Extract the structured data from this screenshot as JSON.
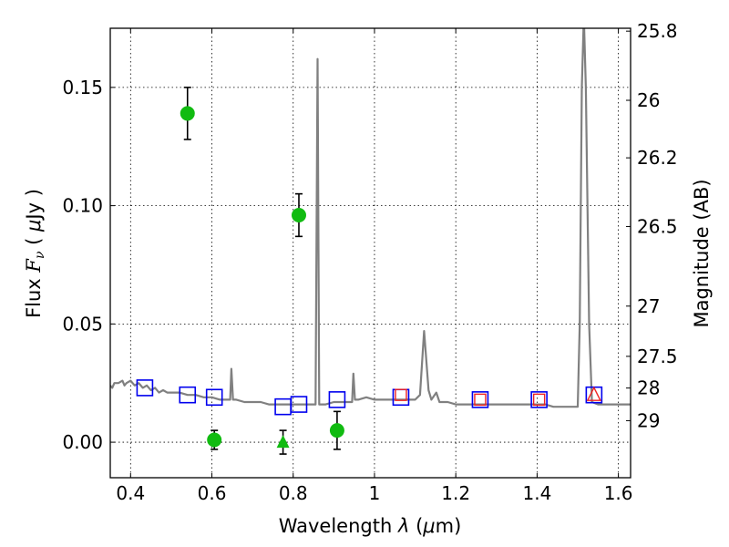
{
  "chart_data": {
    "type": "scatter",
    "x_label": {
      "pre": "Wavelength  ",
      "sym": "λ",
      "post": " (",
      "mu": "μ",
      "unit": "m)"
    },
    "y_label": {
      "pre": "Flux  ",
      "F": "F",
      "nu": "ν",
      "mid": "  ( ",
      "mu": "μ",
      "unit": "Jy )"
    },
    "y2_label": "Magnitude (AB)",
    "xlim": [
      0.35,
      1.63
    ],
    "ylim": [
      -0.015,
      0.175
    ],
    "x_ticks": [
      0.4,
      0.6,
      0.8,
      1.0,
      1.2,
      1.4,
      1.6
    ],
    "x_tick_labels": [
      "0.4",
      "0.6",
      "0.8",
      "1",
      "1.2",
      "1.4",
      "1.6"
    ],
    "y_ticks": [
      0.0,
      0.05,
      0.1,
      0.15
    ],
    "y_tick_labels": [
      "0.00",
      "0.05",
      "0.10",
      "0.15"
    ],
    "mag_ticks": [
      25.8,
      26,
      26.2,
      26.5,
      27,
      27.5,
      28,
      29
    ],
    "mag_tick_labels": [
      "25.8",
      "26",
      "26.2",
      "26.5",
      "27",
      "27.5",
      "28",
      "29"
    ],
    "grid": true,
    "colors": {
      "model": "#808080",
      "detection": "#11bb11",
      "model_photometry": "#0000ee",
      "filter_points": "#ee2222",
      "errorbar": "#000000"
    },
    "model_spectrum": [
      [
        0.35,
        0.024
      ],
      [
        0.355,
        0.023
      ],
      [
        0.36,
        0.025
      ],
      [
        0.37,
        0.025
      ],
      [
        0.38,
        0.026
      ],
      [
        0.385,
        0.024
      ],
      [
        0.39,
        0.025
      ],
      [
        0.4,
        0.026
      ],
      [
        0.41,
        0.024
      ],
      [
        0.42,
        0.025
      ],
      [
        0.43,
        0.023
      ],
      [
        0.44,
        0.024
      ],
      [
        0.45,
        0.022
      ],
      [
        0.46,
        0.023
      ],
      [
        0.47,
        0.021
      ],
      [
        0.48,
        0.022
      ],
      [
        0.49,
        0.021
      ],
      [
        0.5,
        0.021
      ],
      [
        0.52,
        0.021
      ],
      [
        0.54,
        0.02
      ],
      [
        0.56,
        0.02
      ],
      [
        0.58,
        0.019
      ],
      [
        0.6,
        0.019
      ],
      [
        0.62,
        0.018
      ],
      [
        0.64,
        0.018
      ],
      [
        0.645,
        0.018
      ],
      [
        0.648,
        0.031
      ],
      [
        0.652,
        0.018
      ],
      [
        0.66,
        0.018
      ],
      [
        0.68,
        0.017
      ],
      [
        0.7,
        0.017
      ],
      [
        0.72,
        0.017
      ],
      [
        0.74,
        0.016
      ],
      [
        0.76,
        0.016
      ],
      [
        0.78,
        0.016
      ],
      [
        0.8,
        0.016
      ],
      [
        0.82,
        0.016
      ],
      [
        0.84,
        0.016
      ],
      [
        0.855,
        0.016
      ],
      [
        0.86,
        0.162
      ],
      [
        0.864,
        0.016
      ],
      [
        0.88,
        0.016
      ],
      [
        0.9,
        0.017
      ],
      [
        0.92,
        0.017
      ],
      [
        0.94,
        0.017
      ],
      [
        0.945,
        0.017
      ],
      [
        0.948,
        0.029
      ],
      [
        0.952,
        0.018
      ],
      [
        0.96,
        0.018
      ],
      [
        0.98,
        0.019
      ],
      [
        1.0,
        0.018
      ],
      [
        1.02,
        0.018
      ],
      [
        1.04,
        0.018
      ],
      [
        1.06,
        0.018
      ],
      [
        1.08,
        0.018
      ],
      [
        1.1,
        0.018
      ],
      [
        1.112,
        0.02
      ],
      [
        1.122,
        0.047
      ],
      [
        1.133,
        0.022
      ],
      [
        1.14,
        0.018
      ],
      [
        1.152,
        0.021
      ],
      [
        1.16,
        0.017
      ],
      [
        1.18,
        0.017
      ],
      [
        1.2,
        0.016
      ],
      [
        1.22,
        0.016
      ],
      [
        1.24,
        0.016
      ],
      [
        1.26,
        0.016
      ],
      [
        1.28,
        0.016
      ],
      [
        1.3,
        0.016
      ],
      [
        1.32,
        0.016
      ],
      [
        1.34,
        0.016
      ],
      [
        1.36,
        0.016
      ],
      [
        1.38,
        0.016
      ],
      [
        1.4,
        0.016
      ],
      [
        1.42,
        0.016
      ],
      [
        1.44,
        0.015
      ],
      [
        1.46,
        0.015
      ],
      [
        1.48,
        0.015
      ],
      [
        1.5,
        0.015
      ],
      [
        1.505,
        0.05
      ],
      [
        1.51,
        0.15
      ],
      [
        1.515,
        0.18
      ],
      [
        1.52,
        0.15
      ],
      [
        1.528,
        0.05
      ],
      [
        1.535,
        0.017
      ],
      [
        1.55,
        0.016
      ],
      [
        1.57,
        0.016
      ],
      [
        1.6,
        0.016
      ],
      [
        1.63,
        0.016
      ]
    ],
    "detections": [
      {
        "x": 0.54,
        "y": 0.139,
        "err": 0.011
      },
      {
        "x": 0.606,
        "y": 0.001,
        "err": 0.004
      },
      {
        "x": 0.814,
        "y": 0.096,
        "err": 0.009
      },
      {
        "x": 0.908,
        "y": 0.005,
        "err": 0.008
      }
    ],
    "upper_limits": [
      {
        "x": 0.775,
        "y": 0.0,
        "err": 0.005
      }
    ],
    "model_photometry": [
      {
        "x": 0.435,
        "y": 0.023
      },
      {
        "x": 0.54,
        "y": 0.02
      },
      {
        "x": 0.606,
        "y": 0.019
      },
      {
        "x": 0.775,
        "y": 0.015
      },
      {
        "x": 0.814,
        "y": 0.016
      },
      {
        "x": 0.908,
        "y": 0.018
      },
      {
        "x": 1.065,
        "y": 0.019
      },
      {
        "x": 1.26,
        "y": 0.018
      },
      {
        "x": 1.405,
        "y": 0.018
      },
      {
        "x": 1.54,
        "y": 0.02
      }
    ],
    "filter_points": [
      {
        "x": 1.065,
        "y": 0.02,
        "marker": "square"
      },
      {
        "x": 1.26,
        "y": 0.018,
        "marker": "square"
      },
      {
        "x": 1.405,
        "y": 0.018,
        "marker": "square"
      },
      {
        "x": 1.54,
        "y": 0.02,
        "marker": "triangle"
      }
    ]
  }
}
